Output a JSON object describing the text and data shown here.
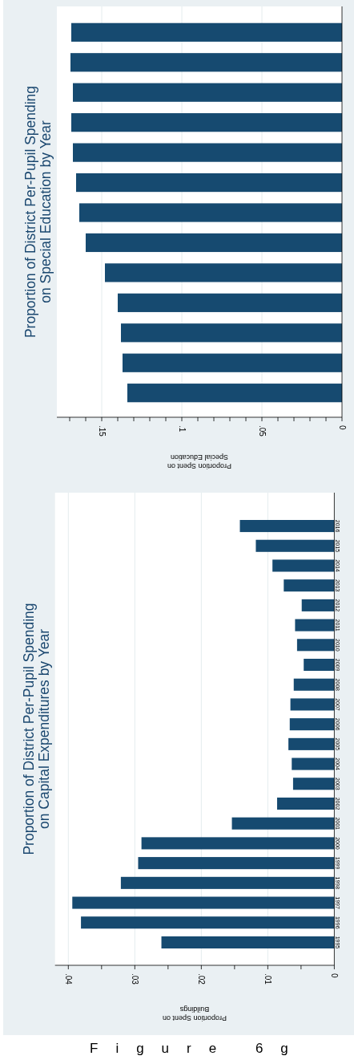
{
  "chart_data": [
    {
      "type": "bar",
      "orientation": "horizontal",
      "title": "Proportion of District Per-Pupil Spending\non Special Education by Year",
      "xlabel": "Proportion Spent on\nSpecial Education",
      "categories": [
        null,
        null,
        null,
        null,
        null,
        null,
        null,
        null,
        null,
        null,
        null,
        null,
        null
      ],
      "values": [
        0.169,
        0.1695,
        0.168,
        0.169,
        0.168,
        0.166,
        0.164,
        0.16,
        0.148,
        0.14,
        0.138,
        0.137,
        0.134
      ],
      "color": "#164a70",
      "xlim": [
        0.178,
        0
      ],
      "xticks": [
        0,
        {
          "value": 0.01,
          "label": null
        },
        {
          "value": 0.02,
          "label": null
        },
        {
          "value": 0.03,
          "label": null
        },
        {
          "value": 0.04,
          "label": null
        },
        {
          "value": 0.05,
          "label": ".05"
        },
        {
          "value": 0.06,
          "label": null
        },
        {
          "value": 0.07,
          "label": null
        },
        {
          "value": 0.08,
          "label": null
        },
        {
          "value": 0.09,
          "label": null
        },
        {
          "value": 0.1,
          "label": ".1"
        },
        {
          "value": 0.11,
          "label": null
        },
        {
          "value": 0.12,
          "label": null
        },
        {
          "value": 0.13,
          "label": null
        },
        {
          "value": 0.14,
          "label": null
        },
        {
          "value": 0.15,
          "label": ".15"
        },
        {
          "value": 0.16,
          "label": null
        },
        {
          "value": 0.17,
          "label": null
        }
      ],
      "grid": "x",
      "tick_labels": "x"
    },
    {
      "type": "bar",
      "orientation": "horizontal",
      "title": "Proportion of District Per-Pupil Spending\non Capital Expenditures by Year",
      "xlabel": "Proportion Spent on\nBuildings",
      "categories": [
        "2016",
        "2015",
        "2014",
        "2013",
        "2012",
        "2011",
        "2010",
        "2009",
        "2008",
        "2007",
        "2006",
        "2005",
        "2004",
        "2003",
        "2002",
        "2001",
        "2000",
        "1999",
        "1998",
        "1997",
        "1996",
        "1995"
      ],
      "values": [
        0.0142,
        0.0118,
        0.0093,
        0.0076,
        0.0049,
        0.0059,
        0.0056,
        0.0046,
        0.0061,
        0.0066,
        0.0067,
        0.0069,
        0.0064,
        0.0062,
        0.0086,
        0.0154,
        0.029,
        0.0295,
        0.0321,
        0.0394,
        0.0381,
        0.026
      ],
      "color": "#164a70",
      "xlim": [
        0.042,
        0
      ],
      "xticks": [
        0,
        {
          "value": 0.005,
          "label": null
        },
        {
          "value": 0.01,
          "label": ".01"
        },
        {
          "value": 0.015,
          "label": null
        },
        {
          "value": 0.02,
          "label": ".02"
        },
        {
          "value": 0.025,
          "label": null
        },
        {
          "value": 0.03,
          "label": ".03"
        },
        {
          "value": 0.035,
          "label": null
        },
        {
          "value": 0.04,
          "label": ".04"
        }
      ],
      "grid": "x",
      "annotations": [
        "Figure 6g"
      ]
    }
  ]
}
